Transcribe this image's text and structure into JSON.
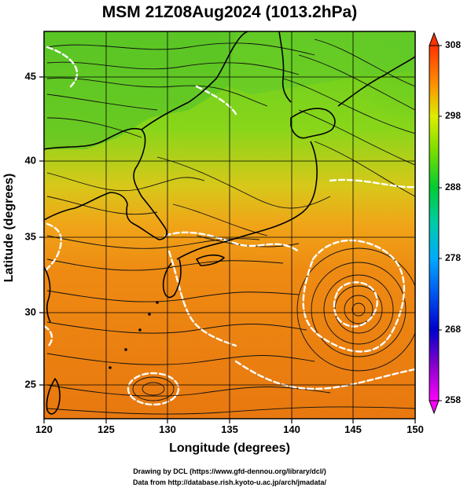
{
  "title": "MSM 21Z08Aug2024 (1013.2hPa)",
  "x_axis": {
    "label": "Longitude (degrees)",
    "ticks": [
      "120",
      "125",
      "130",
      "135",
      "140",
      "145",
      "150"
    ]
  },
  "y_axis": {
    "label": "Latitude  (degrees)",
    "ticks": [
      "25",
      "30",
      "35",
      "40",
      "45"
    ]
  },
  "colorbar": {
    "ticks": [
      "308",
      "298",
      "288",
      "278",
      "268",
      "258"
    ],
    "min": 258,
    "max": 308
  },
  "credits": {
    "line1": "Drawing by DCL (https://www.gfd-dennou.org/library/dcl/)",
    "line2": "Data from http://database.rish.kyoto-u.ac.jp/arch/jmadata/"
  },
  "map_extent": {
    "lon": [
      120,
      150
    ],
    "lat": [
      22.5,
      47.5
    ]
  },
  "features": {
    "cyclone_center": "Typhoon circulation near 145.5E 30N"
  }
}
